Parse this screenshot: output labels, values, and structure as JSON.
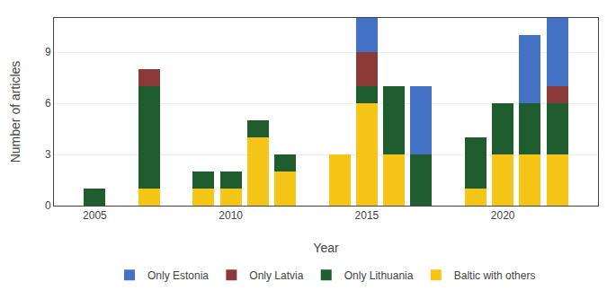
{
  "chart_data": {
    "type": "bar",
    "stacked": true,
    "x": [
      2005,
      2007,
      2009,
      2010,
      2011,
      2012,
      2014,
      2015,
      2016,
      2017,
      2019,
      2020,
      2021,
      2022
    ],
    "series": [
      {
        "name": "Baltic with others",
        "color": "#F5C518",
        "values": [
          0,
          1,
          1,
          1,
          4,
          2,
          3,
          6,
          3,
          0,
          1,
          3,
          3,
          3
        ]
      },
      {
        "name": "Only Lithuania",
        "color": "#1F5C2E",
        "values": [
          1,
          6,
          1,
          1,
          1,
          1,
          0,
          1,
          4,
          3,
          3,
          3,
          3,
          3
        ]
      },
      {
        "name": "Only Latvia",
        "color": "#8B3A3A",
        "values": [
          0,
          1,
          0,
          0,
          0,
          0,
          0,
          2,
          0,
          0,
          0,
          0,
          0,
          1
        ]
      },
      {
        "name": "Only Estonia",
        "color": "#4472C4",
        "values": [
          0,
          0,
          0,
          0,
          0,
          0,
          0,
          2,
          0,
          4,
          0,
          0,
          4,
          4
        ]
      }
    ],
    "xlabel": "Year",
    "ylabel": "Number of articles",
    "xlim": [
      2003.5,
      2023.5
    ],
    "xticks": [
      2005,
      2010,
      2015,
      2020
    ],
    "ylim": [
      0,
      11
    ],
    "yticks": [
      0,
      3,
      6,
      9
    ],
    "grid": true,
    "legend": "bottom"
  }
}
